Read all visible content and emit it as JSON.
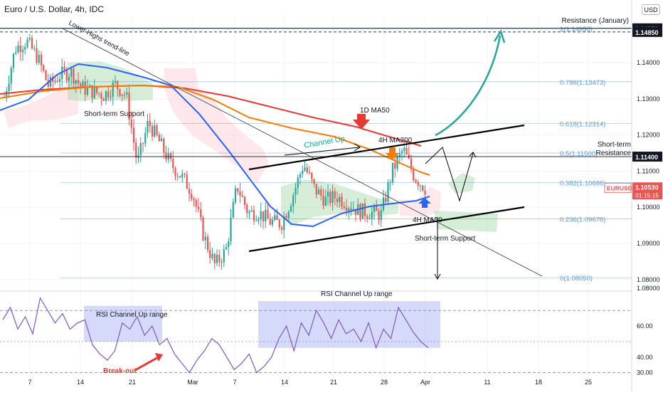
{
  "header": {
    "symbol_title": "Euro / U.S. Dollar, 4h, IDC",
    "currency_badge": "USD"
  },
  "colors": {
    "up_candle": "#26a69a",
    "down_candle": "#ef5350",
    "ma50_4h": "#2962ff",
    "ma200_4h": "#f57c00",
    "ma50_1d": "#e53935",
    "cloud_green": "#a5d6a7",
    "cloud_red": "#ffcdd2",
    "fib_line": "#5b9bd5",
    "rsi_line": "#7e57c2",
    "rsi_box": "#b3b9f5",
    "arrow_green": "#26a69a",
    "last_price_bg": "#ef5350"
  },
  "chart_data": {
    "type": "candlestick",
    "instrument": "EURUSD",
    "timeframe": "4h",
    "ylim": [
      1.077,
      1.153
    ],
    "price_ticks": [
      1.08,
      1.09,
      1.1,
      1.11,
      1.12,
      1.13,
      1.14
    ],
    "time_ticks": [
      "7",
      "14",
      "21",
      "Mar",
      "7",
      "14",
      "21",
      "28",
      "Apr",
      "11",
      "18",
      "25"
    ],
    "price_path": [
      [
        "7",
        1.1305
      ],
      [
        "9",
        1.144
      ],
      [
        "10",
        1.146
      ],
      [
        "11",
        1.1415
      ],
      [
        "14",
        1.1335
      ],
      [
        "15",
        1.1365
      ],
      [
        "16",
        1.1375
      ],
      [
        "17",
        1.133
      ],
      [
        "18",
        1.132
      ],
      [
        "21",
        1.131
      ],
      [
        "22",
        1.134
      ],
      [
        "23",
        1.131
      ],
      [
        "24",
        1.112
      ],
      [
        "25",
        1.1235
      ],
      [
        "28",
        1.118
      ],
      [
        "Mar",
        1.112
      ],
      [
        "2",
        1.1085
      ],
      [
        "3",
        1.104
      ],
      [
        "4",
        1.092
      ],
      [
        "7",
        1.084
      ],
      [
        "8",
        1.088
      ],
      [
        "9",
        1.106
      ],
      [
        "10",
        1.0985
      ],
      [
        "11",
        1.0985
      ],
      [
        "14",
        1.096
      ],
      [
        "15",
        1.0955
      ],
      [
        "16",
        1.103
      ],
      [
        "17",
        1.112
      ],
      [
        "18",
        1.105
      ],
      [
        "21",
        1.102
      ],
      [
        "22",
        1.103
      ],
      [
        "23",
        1.101
      ],
      [
        "24",
        1.099
      ],
      [
        "25",
        1.0985
      ],
      [
        "28",
        1.098
      ],
      [
        "29",
        1.11
      ],
      [
        "30",
        1.116
      ],
      [
        "31",
        1.1085
      ],
      [
        "Apr",
        1.1053
      ]
    ],
    "fib_levels": [
      {
        "label": "1(1.14950)",
        "value": 1.1495
      },
      {
        "label": "0.786(1.13473)",
        "value": 1.13473
      },
      {
        "label": "0.618(1.12314)",
        "value": 1.12314
      },
      {
        "label": "0.5(1.11500)",
        "value": 1.115
      },
      {
        "label": "0.382(1.10686)",
        "value": 1.10686
      },
      {
        "label": "0.236(1.09678)",
        "value": 1.09678
      },
      {
        "label": "0(1.08050)",
        "value": 1.0805
      }
    ],
    "price_labels": [
      {
        "text": "1.14950",
        "value": 1.1495
      },
      {
        "text": "1.14850",
        "value": 1.1485
      },
      {
        "text": "1.11400",
        "value": 1.114
      }
    ],
    "last_price": {
      "symbol": "EURUSD",
      "value": "1.10530",
      "countdown": "01:15:15"
    },
    "annotations": {
      "resistance_january": "Resistance (January)",
      "lower_highs_trendline": "Lower Highs trend-line",
      "short_term_support_left": "Short-term Support",
      "ma50_1d": "1D MA50",
      "ma200_4h": "4H MA200",
      "channel_up": "Channel Up",
      "short_term_resistance": "Short-term Resistance",
      "ma50_4h": "4H MA50",
      "short_term_support_right": "Short-term Support"
    },
    "rsi": {
      "ylim": [
        28,
        82
      ],
      "ticks": [
        30.0,
        40.0,
        60.0
      ],
      "labels": {
        "channel_up_range_left": "RSI Channel Up range",
        "channel_up_range_right": "RSI Channel Up range",
        "breakout": "Break-out"
      },
      "values": [
        64,
        72,
        58,
        66,
        55,
        78,
        70,
        62,
        68,
        58,
        62,
        64,
        48,
        42,
        38,
        44,
        62,
        58,
        66,
        54,
        60,
        48,
        52,
        42,
        36,
        30,
        38,
        44,
        52,
        48,
        40,
        32,
        36,
        42,
        30,
        34,
        40,
        52,
        60,
        44,
        62,
        54,
        70,
        62,
        52,
        64,
        55,
        58,
        50,
        62,
        46,
        58,
        52,
        72,
        64,
        56,
        50,
        46
      ]
    }
  }
}
